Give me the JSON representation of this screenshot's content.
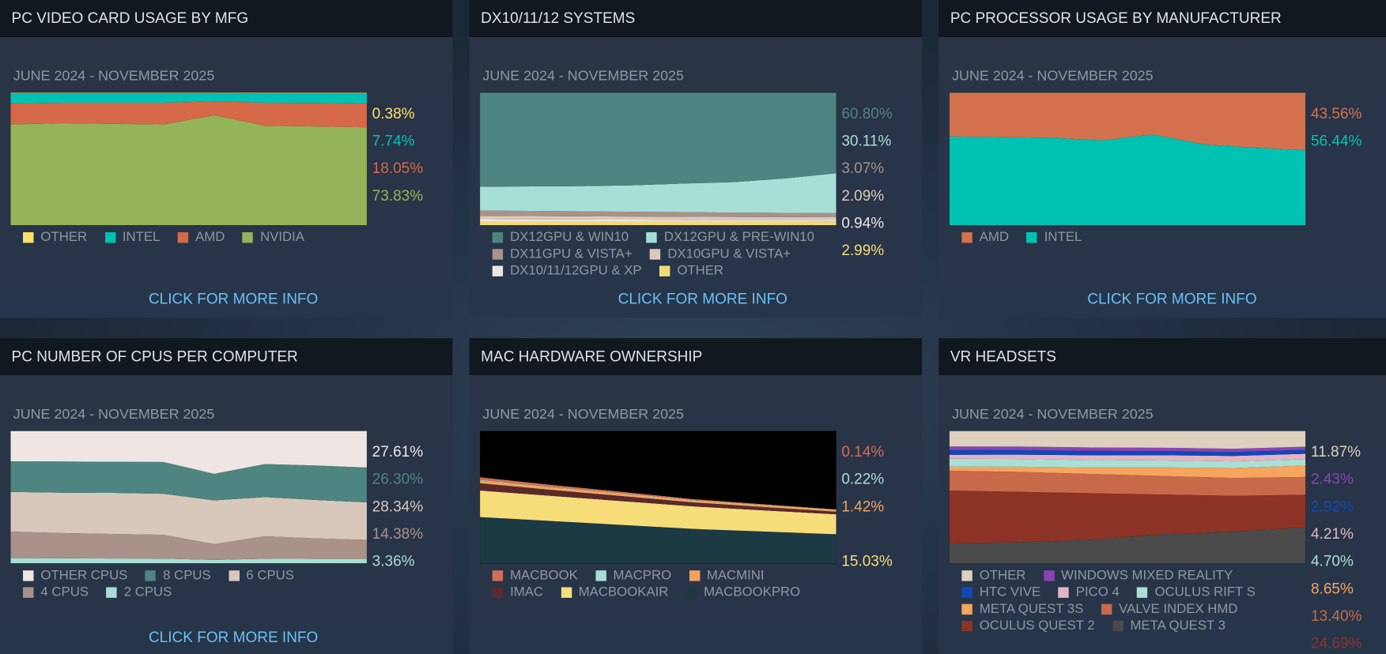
{
  "panels": [
    {
      "title": "PC VIDEO CARD USAGE BY MFG",
      "date_range": "JUNE 2024 - NOVEMBER 2025",
      "link": "CLICK FOR MORE INFO",
      "chart": {
        "type": "area",
        "stacked": true,
        "ylim": [
          0,
          100
        ],
        "series": [
          {
            "name": "OTHER",
            "color": "#ffe16b",
            "label": "0.38%",
            "values": [
              0.5,
              0.5,
              0.5,
              0.5,
              0.5,
              0.4,
              0.4,
              0.38
            ]
          },
          {
            "name": "INTEL",
            "color": "#00c2b3",
            "label": "7.74%",
            "values": [
              7.5,
              7,
              7,
              7,
              6,
              7.1,
              7.3,
              7.74
            ]
          },
          {
            "name": "AMD",
            "color": "#d5694a",
            "label": "18.05%",
            "values": [
              16,
              15.5,
              16,
              16.5,
              10.5,
              17.5,
              17.8,
              18.05
            ]
          },
          {
            "name": "NVIDIA",
            "color": "#95b45a",
            "label": "73.83%",
            "values": [
              76,
              77,
              76.5,
              76,
              83,
              75,
              74.5,
              73.83
            ]
          }
        ]
      }
    },
    {
      "title": "DX10/11/12 SYSTEMS",
      "date_range": "JUNE 2024 - NOVEMBER 2025",
      "link": "CLICK FOR MORE INFO",
      "chart": {
        "type": "area",
        "stacked": true,
        "ylim": [
          0,
          100
        ],
        "series": [
          {
            "name": "DX12GPU & WIN10",
            "color": "#4e8580",
            "label": "60.80%",
            "values": [
              71,
              70.7,
              70.5,
              69.9,
              68.6,
              67.45,
              64.7,
              60.8
            ]
          },
          {
            "name": "DX12GPU & PRE-WIN10",
            "color": "#a7dfd6",
            "label": "30.11%",
            "values": [
              18,
              18.5,
              19,
              20,
              21.5,
              23,
              26,
              30.11
            ]
          },
          {
            "name": "DX11GPU & VISTA+",
            "color": "#a8928a",
            "label": "3.07%",
            "values": [
              4,
              3.9,
              3.8,
              3.6,
              3.5,
              3.3,
              3.2,
              3.07
            ]
          },
          {
            "name": "DX10GPU & VISTA+",
            "color": "#dcc9bb",
            "label": "2.09%",
            "values": [
              2.5,
              2.5,
              2.4,
              2.3,
              2.3,
              2.2,
              2.1,
              2.09
            ]
          },
          {
            "name": "DX10/11/12GPU & XP",
            "color": "#efe6e0",
            "label": "0.94%",
            "values": [
              1.5,
              1.4,
              1.3,
              1.2,
              1.1,
              1.05,
              1,
              0.94
            ]
          },
          {
            "name": "OTHER",
            "color": "#f4d97a",
            "label": "2.99%",
            "values": [
              3,
              3,
              3,
              3,
              3,
              3,
              3,
              2.99
            ]
          }
        ]
      }
    },
    {
      "title": "PC PROCESSOR USAGE BY MANUFACTURER",
      "date_range": "JUNE 2024 - NOVEMBER 2025",
      "link": "CLICK FOR MORE INFO",
      "chart": {
        "type": "area",
        "stacked": true,
        "ylim": [
          0,
          100
        ],
        "series": [
          {
            "name": "AMD",
            "color": "#d3714f",
            "label": "43.56%",
            "values": [
              33,
              33.5,
              34,
              36,
              31.5,
              39,
              41.5,
              43.56
            ]
          },
          {
            "name": "INTEL",
            "color": "#00c2b3",
            "label": "56.44%",
            "values": [
              67,
              66.5,
              66,
              64,
              68.5,
              61,
              58.5,
              56.44
            ]
          }
        ]
      }
    },
    {
      "title": "PC NUMBER OF CPUS PER COMPUTER",
      "date_range": "JUNE 2024 - NOVEMBER 2025",
      "link": "CLICK FOR MORE INFO",
      "chart": {
        "type": "area",
        "stacked": true,
        "ylim": [
          0,
          100
        ],
        "series": [
          {
            "name": "OTHER CPUS",
            "color": "#efe6e3",
            "label": "27.61%",
            "values": [
              23,
              23.1,
              23.3,
              23.4,
              32.4,
              25,
              26.1,
              27.61
            ]
          },
          {
            "name": "8 CPUS",
            "color": "#4e8580",
            "label": "26.30%",
            "values": [
              23,
              23.5,
              23.5,
              24,
              20,
              25,
              26,
              26.3
            ]
          },
          {
            "name": "6 CPUS",
            "color": "#d8c8bc",
            "label": "28.34%",
            "values": [
              30,
              30.5,
              31,
              31,
              33,
              29.5,
              29,
              28.34
            ]
          },
          {
            "name": "4 CPUS",
            "color": "#a8928a",
            "label": "14.38%",
            "values": [
              20,
              19,
              18.5,
              18,
              12,
              17,
              15.5,
              14.38
            ]
          },
          {
            "name": "2 CPUS",
            "color": "#a7dfd6",
            "label": "3.36%",
            "values": [
              4,
              3.9,
              3.7,
              3.6,
              2.6,
              3.5,
              3.4,
              3.36
            ]
          }
        ]
      }
    },
    {
      "title": "MAC HARDWARE OWNERSHIP",
      "date_range": "JUNE 2024 - NOVEMBER 2025",
      "chart": {
        "type": "area",
        "stacked": true,
        "ylim": [
          0,
          100
        ],
        "series": [
          {
            "name": "MACBOOK",
            "color": "#d46b54",
            "label": "0.14%",
            "values": [
              2,
              1.5,
              1,
              0.6,
              0.3,
              0.14
            ]
          },
          {
            "name": "MACPRO",
            "color": "#a7dfd6",
            "label": "0.22%",
            "values": [
              0.5,
              0.4,
              0.35,
              0.3,
              0.25,
              0.22
            ]
          },
          {
            "name": "MACMINI",
            "color": "#f0a35e",
            "label": "1.42%",
            "values": [
              2,
              1.9,
              1.8,
              1.6,
              1.5,
              1.42
            ]
          },
          {
            "name": "IMAC",
            "color": "#5a2a2a",
            "label": null,
            "values": [
              5.5,
              4.5,
              3.8,
              3,
              2.5,
              2
            ]
          },
          {
            "name": "MACBOOKAIR",
            "color": "#f7dc7a",
            "label": "15.03%",
            "values": [
              20,
              19,
              18,
              17,
              16,
              15.03
            ]
          },
          {
            "name": "MACBOOKPRO",
            "color": "#1c3a44",
            "label": null,
            "values": [
              35,
              32,
              29,
              26,
              24,
              22
            ]
          }
        ]
      }
    },
    {
      "title": "VR HEADSETS",
      "date_range": "JUNE 2024 - NOVEMBER 2025",
      "chart": {
        "type": "area",
        "stacked": true,
        "ylim": [
          0,
          100
        ],
        "series": [
          {
            "name": "OTHER",
            "color": "#ddd0bf",
            "label": "11.87%",
            "values": [
              11.7,
              11.8,
              12.5,
              12.7,
              13.45,
              11.87
            ]
          },
          {
            "name": "WINDOWS MIXED REALITY",
            "color": "#8a44b5",
            "label": "2.43%",
            "values": [
              2.8,
              2.7,
              2.6,
              2.5,
              2.45,
              2.43
            ]
          },
          {
            "name": "HTC VIVE",
            "color": "#1048b8",
            "label": "2.92%",
            "values": [
              3.5,
              3.4,
              3.3,
              3.2,
              3,
              2.92
            ]
          },
          {
            "name": "PICO 4",
            "color": "#e4b4c4",
            "label": "4.21%",
            "values": [
              3,
              3.3,
              3.6,
              3.9,
              4.1,
              4.21
            ]
          },
          {
            "name": "OCULUS RIFT S",
            "color": "#a8e0d6",
            "label": "4.70%",
            "values": [
              6,
              5.8,
              5.5,
              5.2,
              5,
              4.7
            ]
          },
          {
            "name": "META QUEST 3S",
            "color": "#f5a55e",
            "label": "8.65%",
            "values": [
              3,
              4,
              5,
              6.5,
              7.5,
              8.65
            ]
          },
          {
            "name": "VALVE INDEX HMD",
            "color": "#c8694a",
            "label": "13.40%",
            "values": [
              15,
              15,
              14.5,
              14,
              13.5,
              13.4
            ]
          },
          {
            "name": "OCULUS QUEST 2",
            "color": "#8c3326",
            "label": "24.69%",
            "values": [
              40,
              38,
              35,
              30,
              27,
              24.69
            ]
          },
          {
            "name": "META QUEST 3",
            "color": "#4a4a4a",
            "label": null,
            "values": [
              15,
              16,
              18,
              22,
              24,
              27.13
            ]
          }
        ]
      }
    }
  ]
}
